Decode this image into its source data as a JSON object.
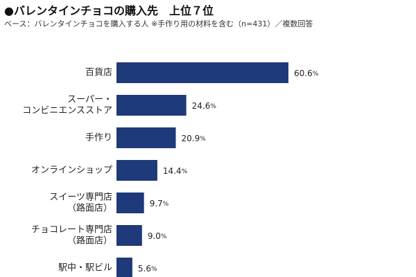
{
  "chart_data": {
    "type": "bar",
    "orientation": "horizontal",
    "title": "●バレンタインチョコの購入先　上位７位",
    "subtitle": "ベース：バレンタインチョコを購入する人 ※手作り用の材料を含む（n=431）／複数回答",
    "categories": [
      [
        "百貨店"
      ],
      [
        "スーパー・",
        "コンビニエンスストア"
      ],
      [
        "手作り"
      ],
      [
        "オンラインショップ"
      ],
      [
        "スイーツ専門店",
        "（路面店）"
      ],
      [
        "チョコレート専門店",
        "（路面店）"
      ],
      [
        "駅中・駅ビル"
      ]
    ],
    "values": [
      60.6,
      24.6,
      20.9,
      14.4,
      9.7,
      9.0,
      5.6
    ],
    "value_labels": [
      "60.6",
      "24.6",
      "20.9",
      "14.4",
      "9.7",
      "9.0",
      "5.6"
    ],
    "unit": "%",
    "bar_color": "#1f3a7a",
    "xlim": [
      0,
      60.6
    ],
    "grid": false,
    "legend": "none"
  }
}
